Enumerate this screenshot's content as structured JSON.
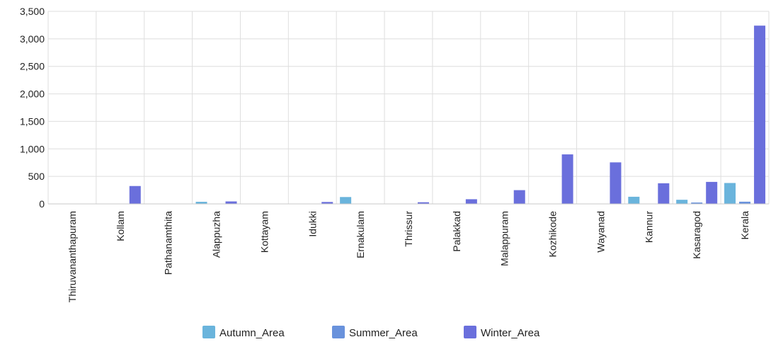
{
  "chart_data": {
    "type": "bar",
    "categories": [
      "Thiruvananthapuram",
      "Kollam",
      "Pathanamthita",
      "Alappuzha",
      "Kottayam",
      "Idukki",
      "Ernakulam",
      "Thrissur",
      "Palakkad",
      "Malappuram",
      "Kozhikode",
      "Wayanad",
      "Kannur",
      "Kasaragod",
      "Kerala"
    ],
    "series": [
      {
        "name": "Autumn_Area",
        "color": "#6ab4dc",
        "values": [
          0,
          0,
          0,
          38,
          0,
          0,
          125,
          0,
          0,
          0,
          0,
          0,
          130,
          75,
          380
        ]
      },
      {
        "name": "Summer_Area",
        "color": "#6992dc",
        "values": [
          0,
          0,
          0,
          0,
          0,
          0,
          0,
          0,
          0,
          0,
          5,
          0,
          0,
          25,
          40
        ]
      },
      {
        "name": "Winter_Area",
        "color": "#6a6fdc",
        "values": [
          0,
          325,
          0,
          45,
          0,
          35,
          5,
          30,
          85,
          250,
          900,
          755,
          375,
          400,
          3240
        ]
      }
    ],
    "title": "",
    "xlabel": "",
    "ylabel": "",
    "ylim": [
      0,
      3500
    ],
    "yticks": [
      0,
      500,
      1000,
      1500,
      2000,
      2500,
      3000,
      3500
    ],
    "ytick_labels": [
      "0",
      "500",
      "1,000",
      "1,500",
      "2,000",
      "2,500",
      "3,000",
      "3,500"
    ],
    "grid": true,
    "legend_position": "bottom-center"
  }
}
